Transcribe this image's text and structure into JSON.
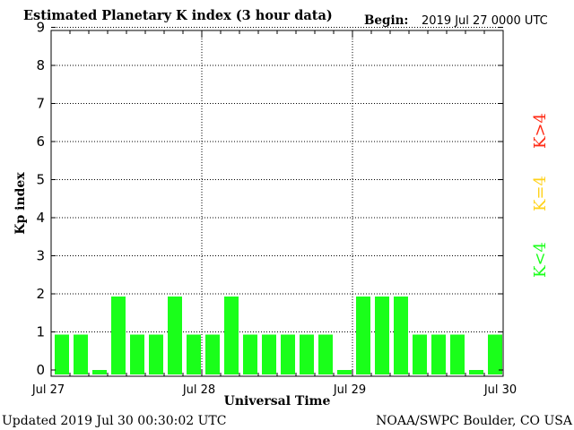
{
  "chart_data": {
    "type": "bar",
    "title": "Estimated Planetary K index (3 hour data)",
    "begin_label": "Begin:",
    "begin_value": "2019 Jul 27 0000 UTC",
    "ylabel": "Kp index",
    "xlabel": "Universal Time",
    "ylim": [
      0,
      9
    ],
    "yticks": [
      "0",
      "1",
      "2",
      "3",
      "4",
      "5",
      "6",
      "7",
      "8",
      "9"
    ],
    "xticks": [
      "Jul 27",
      "Jul 28",
      "Jul 29",
      "Jul 30"
    ],
    "grid": true,
    "values": [
      1,
      1,
      0,
      2,
      1,
      1,
      2,
      1,
      1,
      2,
      1,
      1,
      1,
      1,
      1,
      0,
      2,
      2,
      2,
      1,
      1,
      1,
      0,
      1
    ],
    "bar_color": "#1aff1a",
    "legend": [
      {
        "label": "K<4",
        "color": "#1aff1a"
      },
      {
        "label": "K=4",
        "color": "#ffd21a"
      },
      {
        "label": "K>4",
        "color": "#ff2a14"
      }
    ],
    "legend_placement": "right"
  },
  "footer": {
    "updated": "Updated 2019 Jul 30 00:30:02 UTC",
    "source": "NOAA/SWPC Boulder, CO USA"
  }
}
